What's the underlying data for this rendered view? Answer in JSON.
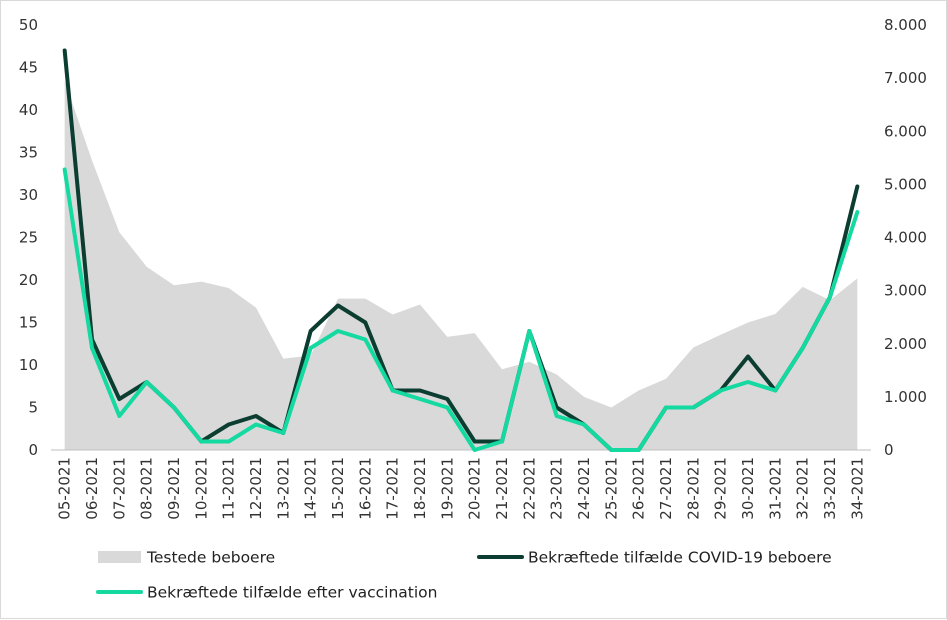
{
  "chart_data": {
    "type": "line",
    "categories": [
      "05-2021",
      "06-2021",
      "07-2021",
      "08-2021",
      "09-2021",
      "10-2021",
      "11-2021",
      "12-2021",
      "13-2021",
      "14-2021",
      "15-2021",
      "16-2021",
      "17-2021",
      "18-2021",
      "19-2021",
      "20-2021",
      "21-2021",
      "22-2021",
      "23-2021",
      "24-2021",
      "25-2021",
      "26-2021",
      "27-2021",
      "28-2021",
      "29-2021",
      "30-2021",
      "31-2021",
      "32-2021",
      "33-2021",
      "34-2021"
    ],
    "series": [
      {
        "name": "Testede beboere",
        "type": "area",
        "axis": "right",
        "color": "#d9d9d9",
        "values": [
          6950,
          5450,
          4100,
          3450,
          3100,
          3170,
          3050,
          2680,
          1720,
          1780,
          2850,
          2850,
          2550,
          2740,
          2130,
          2200,
          1520,
          1660,
          1420,
          1000,
          800,
          1120,
          1340,
          1930,
          2170,
          2400,
          2560,
          3070,
          2820,
          3230
        ]
      },
      {
        "name": "Bekræftede tilfælde COVID-19 beboere",
        "type": "line",
        "axis": "left",
        "color": "#0b3d30",
        "values": [
          47,
          13,
          6,
          8,
          5,
          1,
          3,
          4,
          2,
          14,
          17,
          15,
          7,
          7,
          6,
          1,
          1,
          14,
          5,
          3,
          0,
          0,
          5,
          5,
          7,
          11,
          7,
          12,
          18,
          31
        ]
      },
      {
        "name": "Bekræftede tilfælde efter vaccination",
        "type": "line",
        "axis": "left",
        "color": "#14d9a0",
        "values": [
          33,
          12,
          4,
          8,
          5,
          1,
          1,
          3,
          2,
          12,
          14,
          13,
          7,
          6,
          5,
          0,
          1,
          14,
          4,
          3,
          0,
          0,
          5,
          5,
          7,
          8,
          7,
          12,
          18,
          28
        ]
      }
    ],
    "y_left": {
      "min": 0,
      "max": 50,
      "ticks": [
        "0",
        "5",
        "10",
        "15",
        "20",
        "25",
        "30",
        "35",
        "40",
        "45",
        "50"
      ],
      "tick_values": [
        0,
        5,
        10,
        15,
        20,
        25,
        30,
        35,
        40,
        45,
        50
      ]
    },
    "y_right": {
      "min": 0,
      "max": 8000,
      "ticks": [
        "0",
        "1.000",
        "2.000",
        "3.000",
        "4.000",
        "5.000",
        "6.000",
        "7.000",
        "8.000"
      ],
      "tick_values": [
        0,
        1000,
        2000,
        3000,
        4000,
        5000,
        6000,
        7000,
        8000
      ]
    },
    "grid": false,
    "legend_position": "bottom",
    "title": "",
    "xlabel": "",
    "ylabel": ""
  }
}
